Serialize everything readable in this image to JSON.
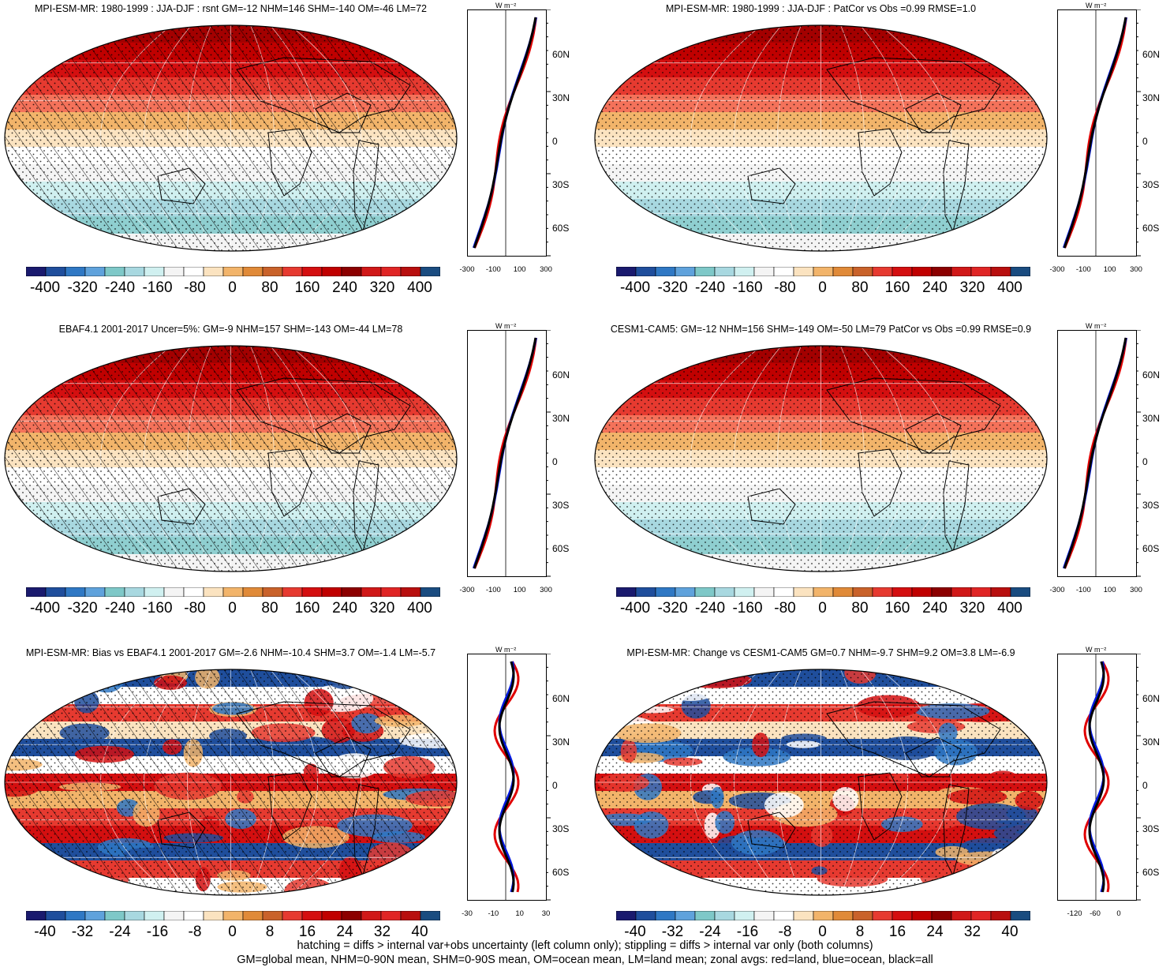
{
  "panels": [
    {
      "title": "MPI-ESM-MR: 1980-1999 : JJA-DJF : rsnt GM=-12 NHM=146 SHM=-140 OM=-46 LM=72",
      "colorbar": [
        "-400",
        "-320",
        "-240",
        "-160",
        "-80",
        "0",
        "80",
        "160",
        "240",
        "320",
        "400"
      ],
      "zonal_ticks": [
        "-300",
        "-100",
        "100",
        "300"
      ],
      "hatched": true,
      "type": "field"
    },
    {
      "title": "MPI-ESM-MR: 1980-1999 : JJA-DJF : PatCor vs Obs =0.99 RMSE=1.0",
      "colorbar": [
        "-400",
        "-320",
        "-240",
        "-160",
        "-80",
        "0",
        "80",
        "160",
        "240",
        "320",
        "400"
      ],
      "zonal_ticks": [
        "-300",
        "-100",
        "100",
        "300"
      ],
      "hatched": false,
      "type": "field"
    },
    {
      "title": "EBAF4.1 2001-2017 Uncer=5%: GM=-9 NHM=157 SHM=-143 OM=-44 LM=78",
      "colorbar": [
        "-400",
        "-320",
        "-240",
        "-160",
        "-80",
        "0",
        "80",
        "160",
        "240",
        "320",
        "400"
      ],
      "zonal_ticks": [
        "-300",
        "-100",
        "100",
        "300"
      ],
      "hatched": true,
      "type": "field"
    },
    {
      "title": "CESM1-CAM5: GM=-12 NHM=156 SHM=-149 OM=-50 LM=79 PatCor vs Obs =0.99 RMSE=0.9",
      "colorbar": [
        "-400",
        "-320",
        "-240",
        "-160",
        "-80",
        "0",
        "80",
        "160",
        "240",
        "320",
        "400"
      ],
      "zonal_ticks": [
        "-300",
        "-100",
        "100",
        "300"
      ],
      "hatched": false,
      "type": "field"
    },
    {
      "title": "MPI-ESM-MR: Bias vs EBAF4.1 2001-2017 GM=-2.6 NHM=-10.4 SHM=3.7 OM=-1.4 LM=-5.7",
      "colorbar": [
        "-40",
        "-32",
        "-24",
        "-16",
        "-8",
        "0",
        "8",
        "16",
        "24",
        "32",
        "40"
      ],
      "zonal_ticks": [
        "-30",
        "-10",
        "10",
        "30"
      ],
      "hatched": true,
      "type": "diff"
    },
    {
      "title": "MPI-ESM-MR: Change vs CESM1-CAM5 GM=0.7 NHM=-9.7 SHM=9.2 OM=3.8 LM=-6.9",
      "colorbar": [
        "-40",
        "-32",
        "-24",
        "-16",
        "-8",
        "0",
        "8",
        "16",
        "24",
        "32",
        "40"
      ],
      "zonal_ticks": [
        "-120",
        "-60",
        "0"
      ],
      "hatched": false,
      "type": "diff"
    }
  ],
  "lat_labels": [
    "60N",
    "30N",
    "0",
    "30S",
    "60S"
  ],
  "unit": "W m⁻²",
  "palette": [
    "#1a1a6e",
    "#1f4e9c",
    "#2f78c4",
    "#5fa2dc",
    "#7ec8c8",
    "#a8d8e0",
    "#d0f0f0",
    "#f4f4f4",
    "#ffffff",
    "#fbe3c0",
    "#f2b46a",
    "#e08a38",
    "#c9622a",
    "#e63a30",
    "#d40f10",
    "#c00000",
    "#8c0000",
    "#d01818",
    "#e02525",
    "#b80f0f",
    "#1a4c80"
  ],
  "footer": {
    "line1": "hatching = diffs > internal var+obs uncertainty (left column only); stippling = diffs > internal var only (both columns)",
    "line2": "GM=global mean, NHM=0-90N mean, SHM=0-90S mean, OM=ocean mean, LM=land mean; zonal avgs: red=land, blue=ocean, black=all"
  }
}
